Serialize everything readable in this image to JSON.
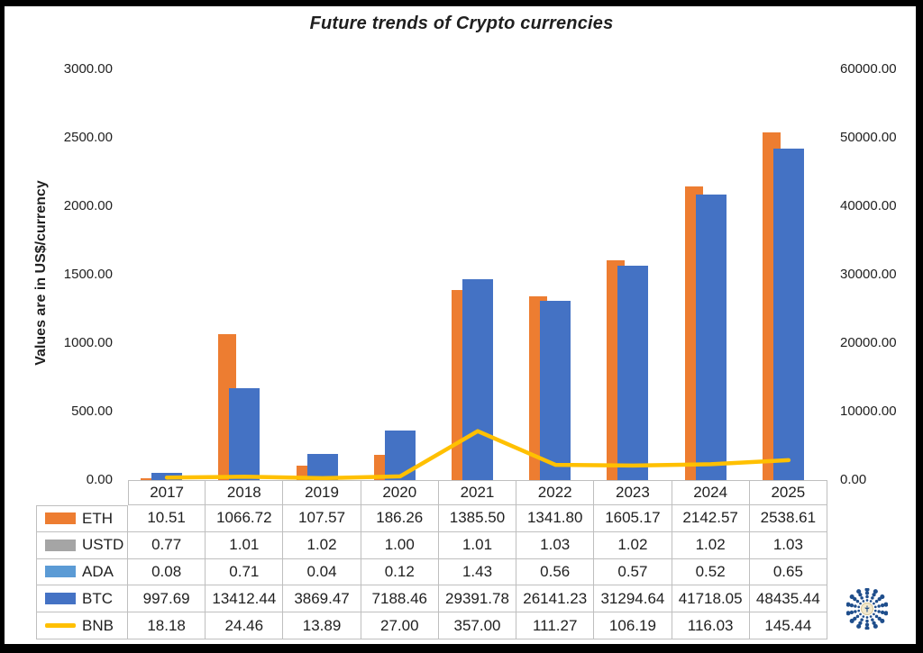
{
  "chart_data": {
    "type": "combo-bar-line",
    "title": "Future trends of Crypto currencies",
    "ylabel_left": "Values are in US$/currency",
    "categories": [
      "2017",
      "2018",
      "2019",
      "2020",
      "2021",
      "2022",
      "2023",
      "2024",
      "2025"
    ],
    "left_axis": {
      "min": 0,
      "max": 3000,
      "step": 500,
      "tick_labels": [
        "0.00",
        "500.00",
        "1000.00",
        "1500.00",
        "2000.00",
        "2500.00",
        "3000.00"
      ]
    },
    "right_axis": {
      "min": 0,
      "max": 60000,
      "step": 10000,
      "tick_labels": [
        "0.00",
        "10000.00",
        "20000.00",
        "30000.00",
        "40000.00",
        "50000.00",
        "60000.00"
      ]
    },
    "grid": false,
    "legend_position": "data-table-left-column",
    "series": [
      {
        "name": "ETH",
        "type": "bar",
        "axis": "left",
        "color": "#ED7D31",
        "values": [
          10.51,
          1066.72,
          107.57,
          186.26,
          1385.5,
          1341.8,
          1605.17,
          2142.57,
          2538.61
        ]
      },
      {
        "name": "USTD",
        "type": "bar",
        "axis": "left",
        "color": "#A5A5A5",
        "values": [
          0.77,
          1.01,
          1.02,
          1.0,
          1.01,
          1.03,
          1.02,
          1.02,
          1.03
        ]
      },
      {
        "name": "ADA",
        "type": "bar",
        "axis": "left",
        "color": "#5B9BD5",
        "values": [
          0.08,
          0.71,
          0.04,
          0.12,
          1.43,
          0.56,
          0.57,
          0.52,
          0.65
        ]
      },
      {
        "name": "BTC",
        "type": "bar",
        "axis": "right",
        "color": "#4472C4",
        "values": [
          997.69,
          13412.44,
          3869.47,
          7188.46,
          29391.78,
          26141.23,
          31294.64,
          41718.05,
          48435.44
        ]
      },
      {
        "name": "BNB",
        "type": "line",
        "axis": "left",
        "color": "#FFC000",
        "values": [
          18.18,
          24.46,
          13.89,
          27.0,
          357.0,
          111.27,
          106.19,
          116.03,
          145.44
        ]
      }
    ]
  },
  "colors": {
    "axis_line": "#D9D9D9",
    "table_border": "#BFBFBF",
    "text": "#1F1F1F",
    "frame": "#000000",
    "logo_dots": "#1F4E8C",
    "logo_center_fill": "#F3E9CD",
    "logo_center_stroke": "#D9C89A"
  },
  "logo": {
    "icon": "dotted-starburst-logo"
  }
}
